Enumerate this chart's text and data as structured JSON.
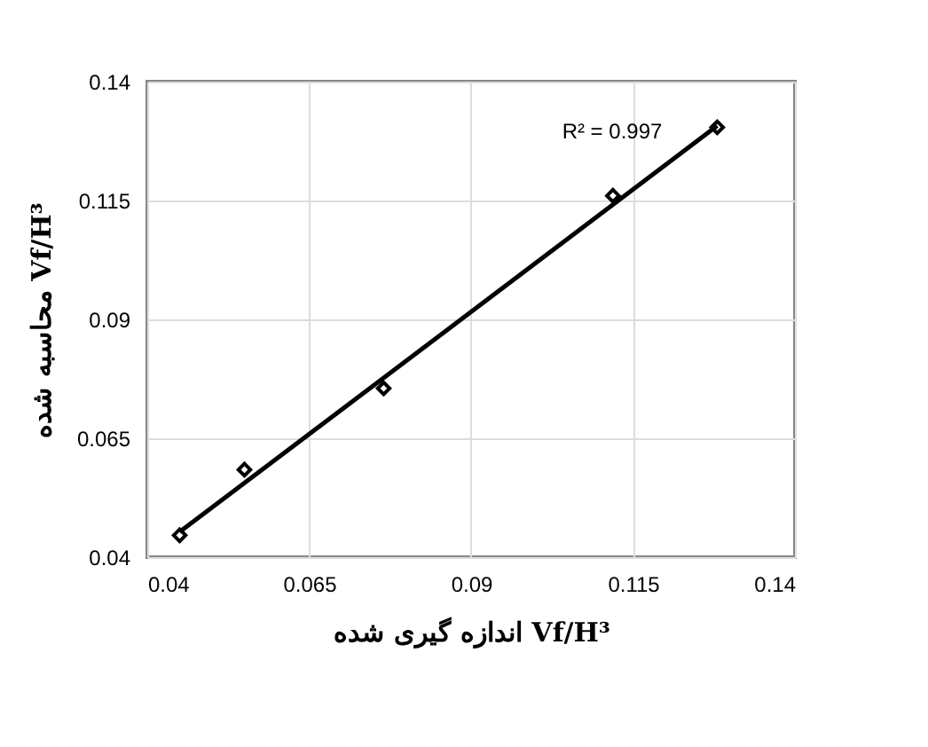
{
  "chart_data": {
    "type": "scatter",
    "xlabel": "اندازه گیری شده Vf/H³",
    "ylabel": "محاسبه شده Vf/H³",
    "annotations": [
      "R² = 0.997"
    ],
    "series": [
      {
        "color": "#000000",
        "marker": "diamond",
        "x": [
          0.045,
          0.055,
          0.0765,
          0.1119,
          0.128
        ],
        "values": [
          0.0446,
          0.0584,
          0.0755,
          0.116,
          0.1304
        ]
      },
      {
        "type": "line",
        "color": "#000000",
        "line_style": "solid",
        "x": [
          0.045,
          0.128
        ],
        "values": [
          0.0453,
          0.1307
        ]
      }
    ],
    "xlim": [
      0.04,
      0.14
    ],
    "ylim": [
      0.04,
      0.14
    ],
    "xticks": [
      0.04,
      0.065,
      0.09,
      0.115,
      0.14
    ],
    "yticks": [
      0.04,
      0.065,
      0.09,
      0.115,
      0.14
    ],
    "grid": true
  }
}
